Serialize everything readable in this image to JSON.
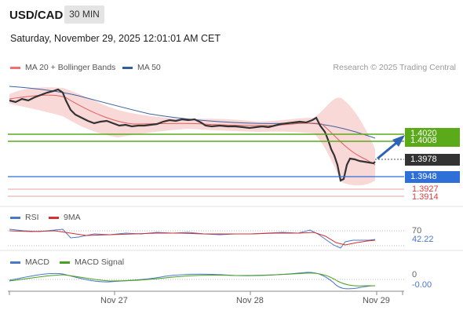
{
  "header": {
    "symbol": "USD/CAD",
    "timeframe": "30 MIN",
    "datetime": "Saturday, November 29, 2025 12:01:01 AM CET"
  },
  "price_panel": {
    "legend": [
      {
        "label": "MA 20 + Bollinger Bands",
        "color": "#f07070"
      },
      {
        "label": "MA 50",
        "color": "#2f5f9e"
      }
    ],
    "credit": "Research © 2025 Trading Central",
    "levels": {
      "resistance_1": "1.4020",
      "resistance_2": "1.4008",
      "last_price": "1.3978",
      "pivot": "1.3948",
      "support_1": "1.3927",
      "support_2": "1.3914"
    },
    "colors": {
      "resistance": "#5aaa1a",
      "pivot": "#2f6fd8",
      "support": "#d84040",
      "last": "#333333"
    }
  },
  "rsi_panel": {
    "legend": [
      {
        "label": "RSI",
        "color": "#4a78c8"
      },
      {
        "label": "9MA",
        "color": "#d83030"
      }
    ],
    "axis_label": "70",
    "value": "42.22"
  },
  "macd_panel": {
    "legend": [
      {
        "label": "MACD",
        "color": "#4a78c8"
      },
      {
        "label": "MACD Signal",
        "color": "#4aa020"
      }
    ],
    "axis_label": "0",
    "value": "-0.00"
  },
  "x_axis": {
    "labels": [
      "Nov 27",
      "Nov 28",
      "Nov 29"
    ]
  }
}
